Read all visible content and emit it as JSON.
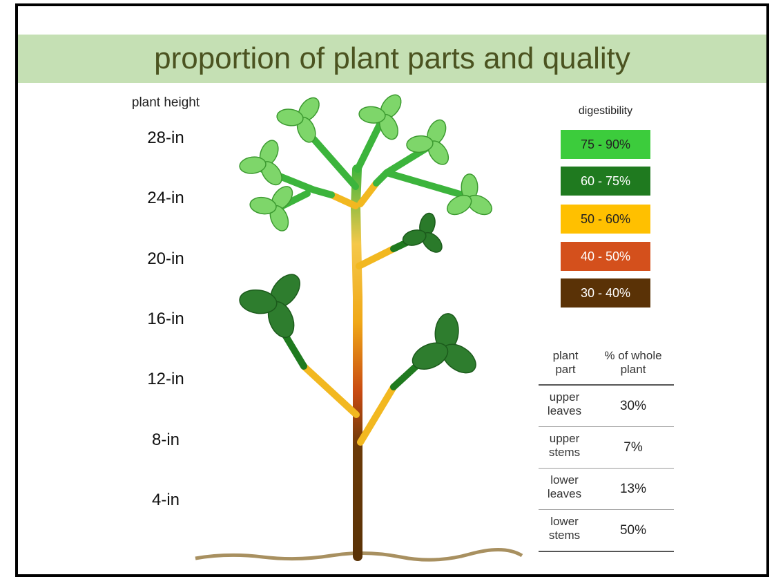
{
  "title": "proportion of plant parts and quality",
  "height_axis": {
    "label": "plant height",
    "ticks": [
      "28-in",
      "24-in",
      "20-in",
      "16-in",
      "12-in",
      "8-in",
      "4-in"
    ]
  },
  "legend": {
    "title": "digestibility",
    "items": [
      {
        "label": "75 - 90%",
        "color": "#3ccc3c"
      },
      {
        "label": "60 - 75%",
        "color": "#1f7a1f"
      },
      {
        "label": "50 - 60%",
        "color": "#ffc000"
      },
      {
        "label": "40 - 50%",
        "color": "#d4501c"
      },
      {
        "label": "30 - 40%",
        "color": "#5a3206"
      }
    ]
  },
  "table": {
    "header": [
      "plant part",
      "% of whole plant"
    ],
    "rows": [
      [
        "upper leaves",
        "30%"
      ],
      [
        "upper stems",
        "7%"
      ],
      [
        "lower leaves",
        "13%"
      ],
      [
        "lower stems",
        "50%"
      ]
    ]
  }
}
